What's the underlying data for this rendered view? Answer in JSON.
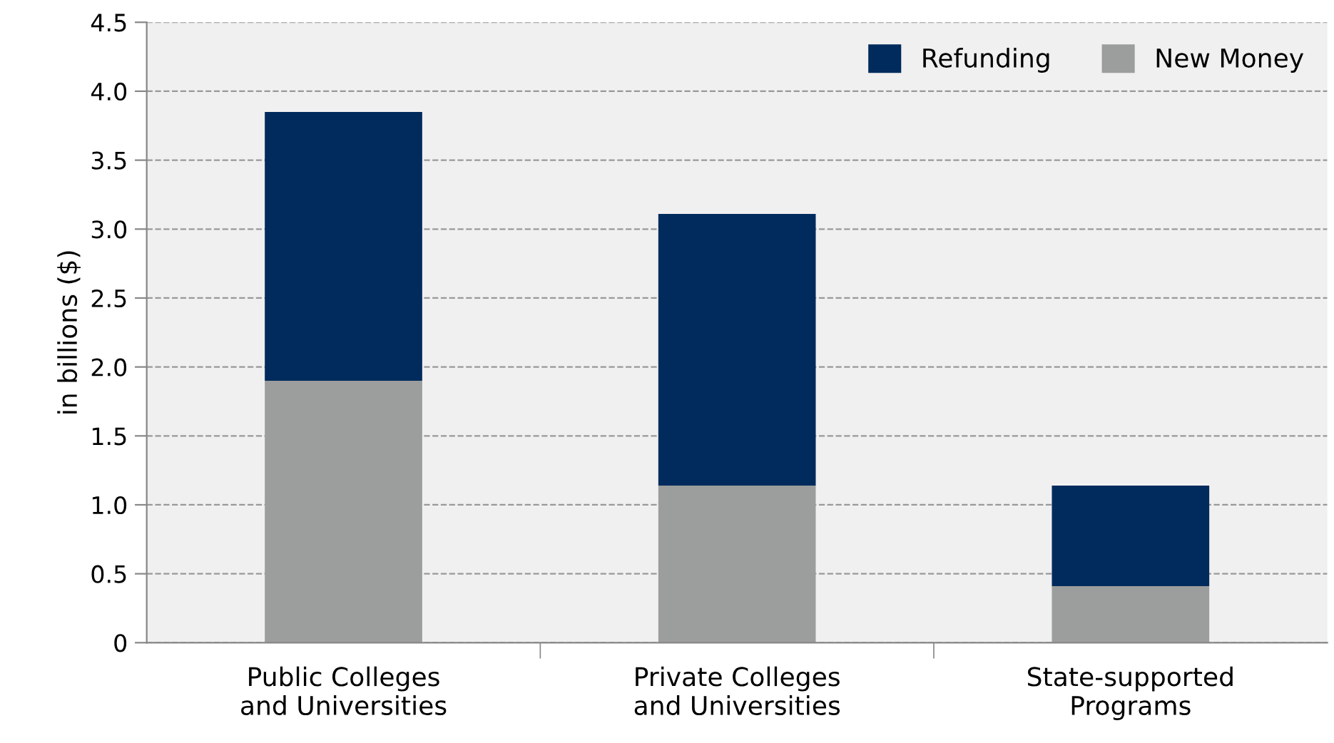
{
  "chart_data": {
    "type": "bar",
    "stacked": true,
    "ylabel": "in billions ($)",
    "categories": [
      "Public Colleges\nand Universities",
      "Private Colleges\nand Universities",
      "State-supported\nPrograms"
    ],
    "series": [
      {
        "name": "New Money",
        "color": "#9c9d9d",
        "values": [
          1.9,
          1.14,
          0.41
        ]
      },
      {
        "name": "Refunding",
        "color": "#002b5c",
        "values": [
          1.95,
          1.97,
          0.73
        ]
      }
    ],
    "ylim": [
      0,
      4.5
    ],
    "yticks": [
      0,
      {
        "value": 0.5,
        "label": "0.5"
      },
      {
        "value": 1,
        "label": "1.0"
      },
      {
        "value": 1.5,
        "label": "1.5"
      },
      {
        "value": 2,
        "label": "2.0"
      },
      {
        "value": 2.5,
        "label": "2.5"
      },
      {
        "value": 3,
        "label": "3.0"
      },
      {
        "value": 3.5,
        "label": "3.5"
      },
      {
        "value": 4,
        "label": "4.0"
      },
      {
        "value": 4.5,
        "label": "4.5"
      }
    ],
    "grid": "y",
    "legend": "top right"
  }
}
